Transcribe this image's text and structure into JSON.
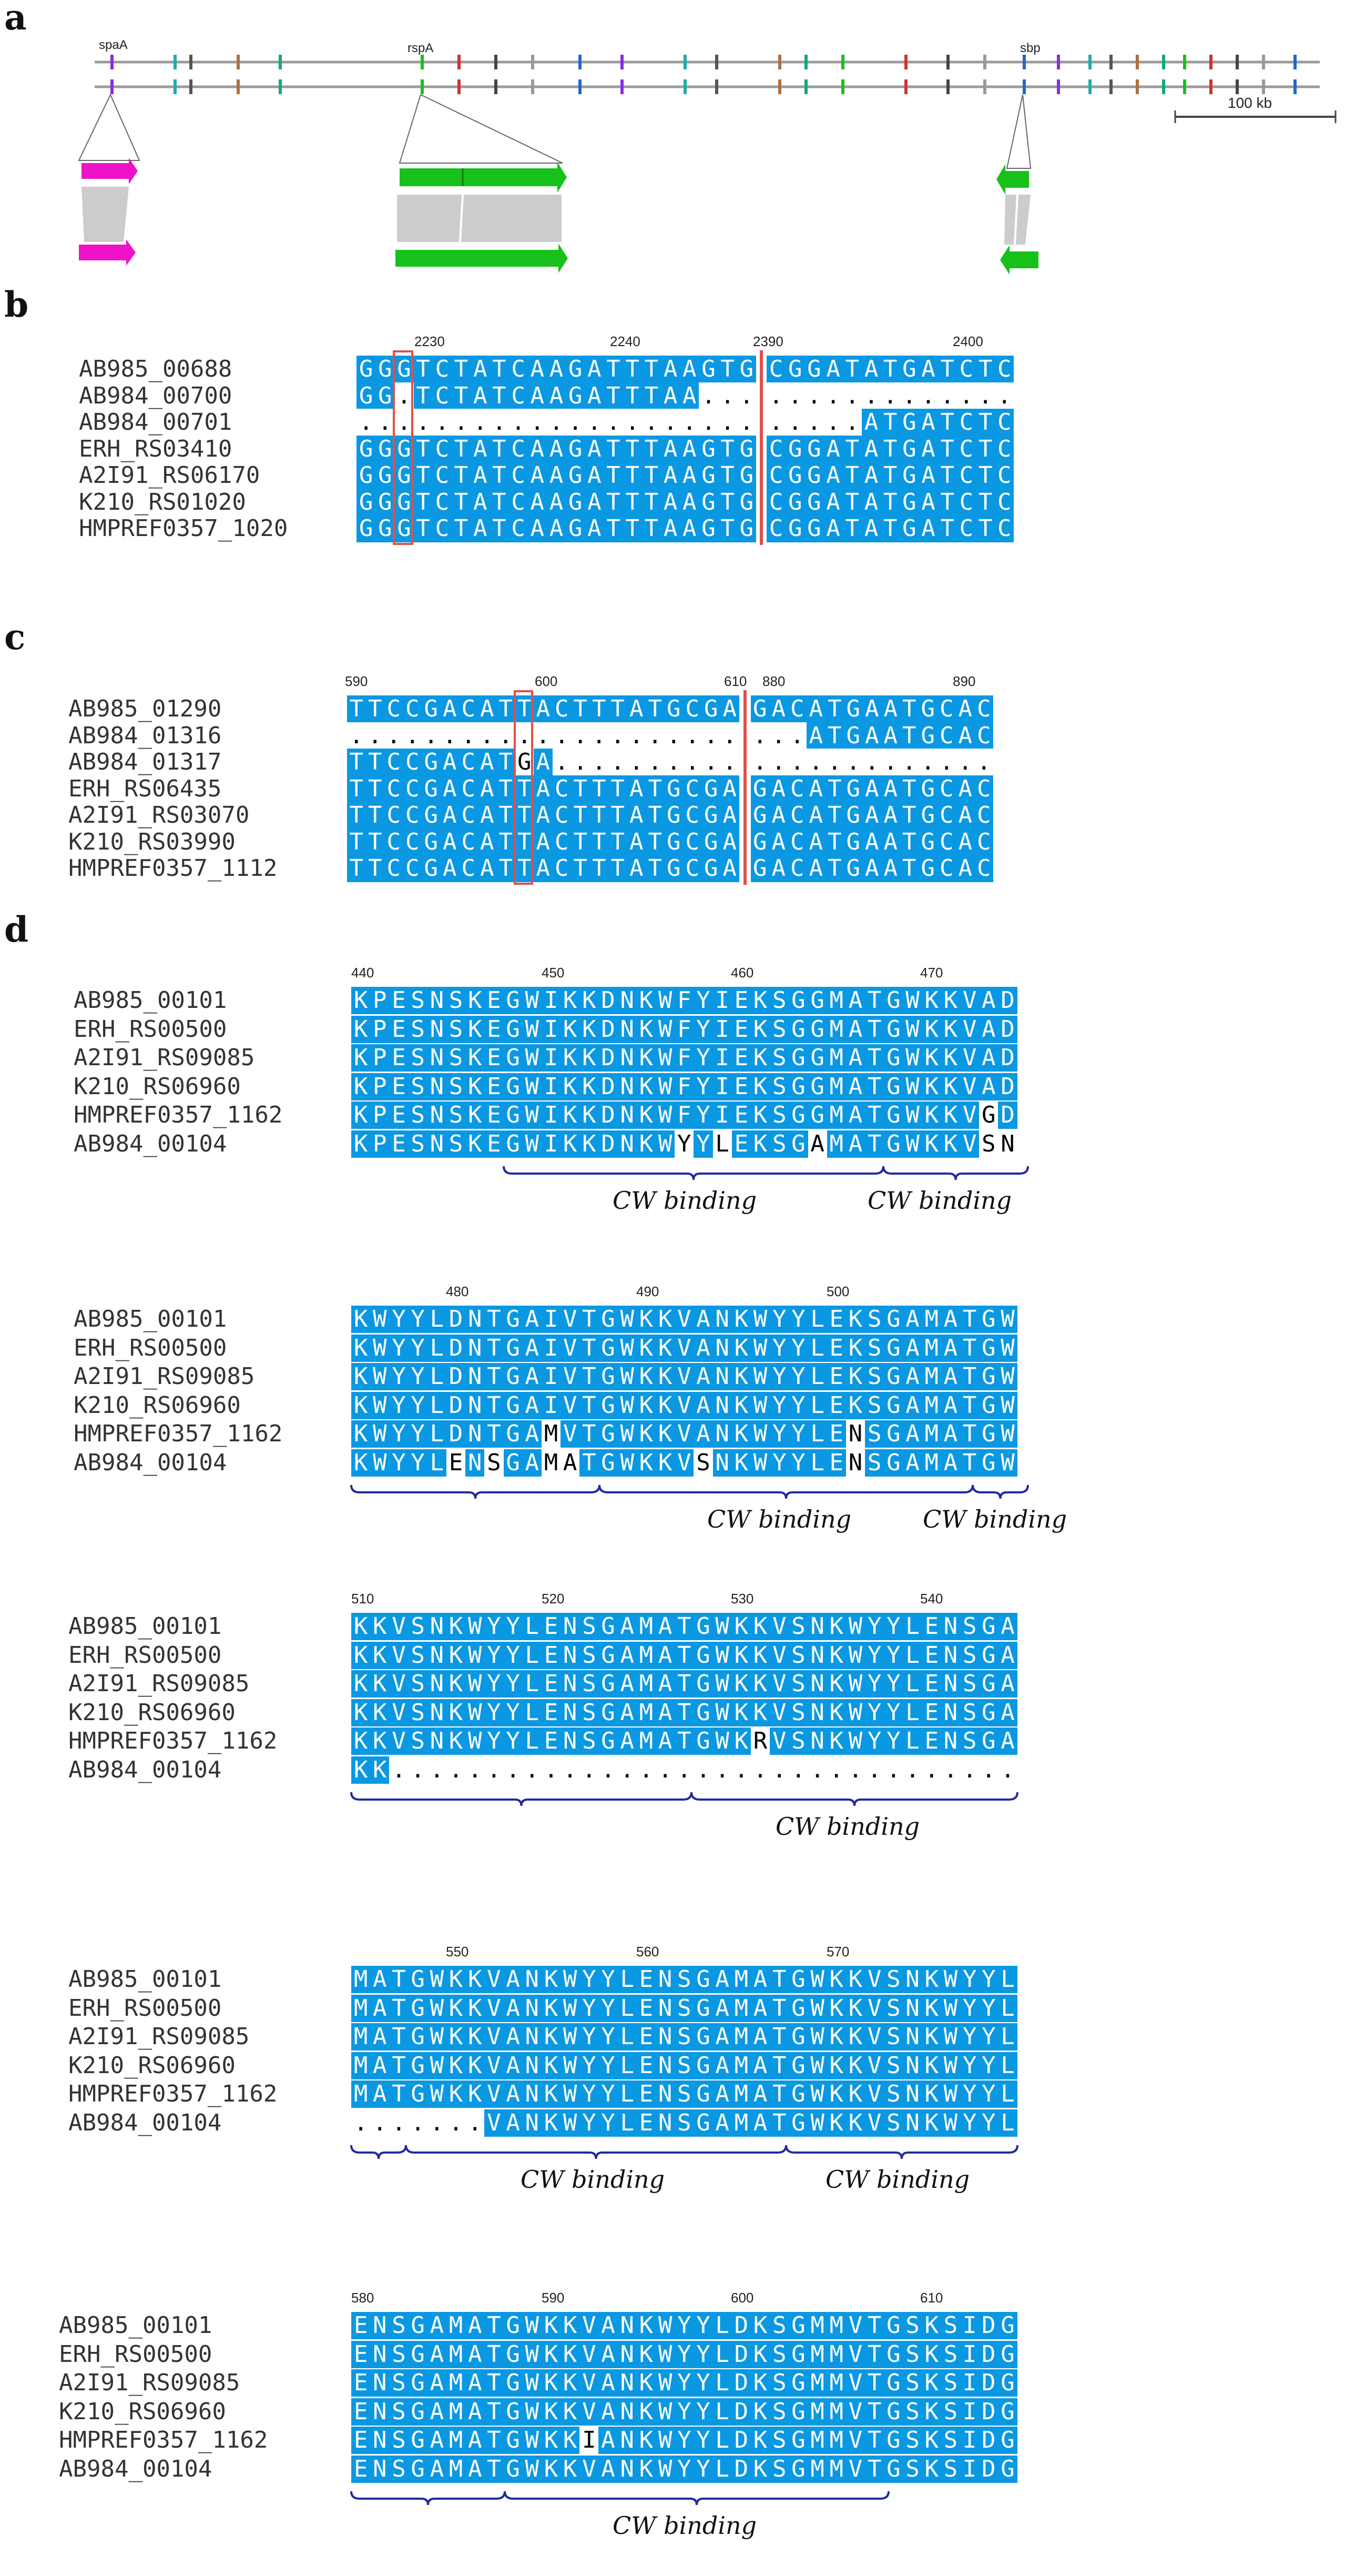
{
  "colors": {
    "conserved": "#0b98e2",
    "red_box": "#e0504a",
    "brace": "#1f2a9e",
    "spaA": "#ee12c8",
    "rspA_sbp": "#17c11a",
    "link": "#cccccc"
  },
  "panel_a": {
    "letter": "a",
    "gene_labels": [
      "spaA",
      "rspA",
      "sbp"
    ],
    "scale_label": "100 kb"
  },
  "panel_b": {
    "letter": "b",
    "positions": [
      "2230",
      "2240",
      "2390",
      "2400"
    ],
    "names": [
      "AB985_00688",
      "AB984_00700",
      "AB984_00701",
      "ERH_RS03410",
      "A2I91_RS06170",
      "K210_RS01020",
      "HMPREF0357_1020"
    ],
    "rows": [
      "GGGTCTATCAAGATTTAAGTG|CGGATATGATCTC",
      "GG.TCTATCAAGATTTAA...|.............",
      ".....................|.....ATGATCTC",
      "GGGTCTATCAAGATTTAAGTG|CGGATATGATCTC",
      "GGGTCTATCAAGATTTAAGTG|CGGATATGATCTC",
      "GGGTCTATCAAGATTTAAGTG|CGGATATGATCTC",
      "GGGTCTATCAAGATTTAAGTG|CGGATATGATCTC"
    ]
  },
  "panel_c": {
    "letter": "c",
    "positions": [
      "590",
      "600",
      "610",
      "880",
      "890"
    ],
    "names": [
      "AB985_01290",
      "AB984_01316",
      "AB984_01317",
      "ERH_RS06435",
      "A2I91_RS03070",
      "K210_RS03990",
      "HMPREF0357_1112"
    ],
    "rows": [
      "TTCCGACATTACTTTATGCGA|GACATGAATGCAC",
      ".....................|...ATGAATGCAC",
      "TTCCGACATGA..........|.............",
      "TTCCGACATTACTTTATGCGA|GACATGAATGCAC",
      "TTCCGACATTACTTTATGCGA|GACATGAATGCAC",
      "TTCCGACATTACTTTATGCGA|GACATGAATGCAC",
      "TTCCGACATTACTTTATGCGA|GACATGAATGCAC"
    ]
  },
  "panel_d": {
    "letter": "d",
    "cw_label": "CW binding",
    "names": [
      "AB985_00101",
      "ERH_RS00500",
      "A2I91_RS09085",
      "K210_RS06960",
      "HMPREF0357_1162",
      "AB984_00104"
    ],
    "blocks": [
      {
        "positions": [
          "440",
          "450",
          "460",
          "470"
        ],
        "rows": [
          "KPESNSKEGWIKKDNKWFYIEKSGGMATGWKKVAD",
          "KPESNSKEGWIKKDNKWFYIEKSGGMATGWKKVAD",
          "KPESNSKEGWIKKDNKWFYIEKSGGMATGWKKVAD",
          "KPESNSKEGWIKKDNKWFYIEKSGGMATGWKKVAD",
          "KPESNSKEGWIKKDNKWFYIEKSGGMATGWKKVGD",
          "KPESNSKEGWIKKDNKWYYLEKSGAMATGWKKVSN"
        ]
      },
      {
        "positions": [
          "480",
          "490",
          "500"
        ],
        "rows": [
          "KWYYLDNTGAIVTGWKKVANKWYYLEKSGAMATGW",
          "KWYYLDNTGAIVTGWKKVANKWYYLEKSGAMATGW",
          "KWYYLDNTGAIVTGWKKVANKWYYLEKSGAMATGW",
          "KWYYLDNTGAIVTGWKKVANKWYYLEKSGAMATGW",
          "KWYYLDNTGAMVTGWKKVANKWYYLENSGAMATGW",
          "KWYYLENSGAMATGWKKVSNKWYYLENSGAMATGW"
        ]
      },
      {
        "positions": [
          "510",
          "520",
          "530",
          "540"
        ],
        "rows": [
          "KKVSNKWYYLENSGAMATGWKKVSNKWYYLENSGA",
          "KKVSNKWYYLENSGAMATGWKKVSNKWYYLENSGA",
          "KKVSNKWYYLENSGAMATGWKKVSNKWYYLENSGA",
          "KKVSNKWYYLENSGAMATGWKKVSNKWYYLENSGA",
          "KKVSNKWYYLENSGAMATGWKRVSNKWYYLENSGA",
          "KK................................."
        ]
      },
      {
        "positions": [
          "550",
          "560",
          "570"
        ],
        "rows": [
          "MATGWKKVANKWYYLENSGAMATGWKKVSNKWYYL",
          "MATGWKKVANKWYYLENSGAMATGWKKVSNKWYYL",
          "MATGWKKVANKWYYLENSGAMATGWKKVSNKWYYL",
          "MATGWKKVANKWYYLENSGAMATGWKKVSNKWYYL",
          "MATGWKKVANKWYYLENSGAMATGWKKVSNKWYYL",
          ".......VANKWYYLENSGAMATGWKKVSNKWYYL"
        ]
      },
      {
        "positions": [
          "580",
          "590",
          "600",
          "610"
        ],
        "rows": [
          "ENSGAMATGWKKVANKWYYLDKSGMMVTGSKSIDG",
          "ENSGAMATGWKKVANKWYYLDKSGMMVTGSKSIDG",
          "ENSGAMATGWKKVANKWYYLDKSGMMVTGSKSIDG",
          "ENSGAMATGWKKVANKWYYLDKSGMMVTGSKSIDG",
          "ENSGAMATGWKKIANKWYYLDKSGMMVTGSKSIDG",
          "ENSGAMATGWKKVANKWYYLDKSGMMVTGSKSIDG"
        ]
      }
    ]
  }
}
